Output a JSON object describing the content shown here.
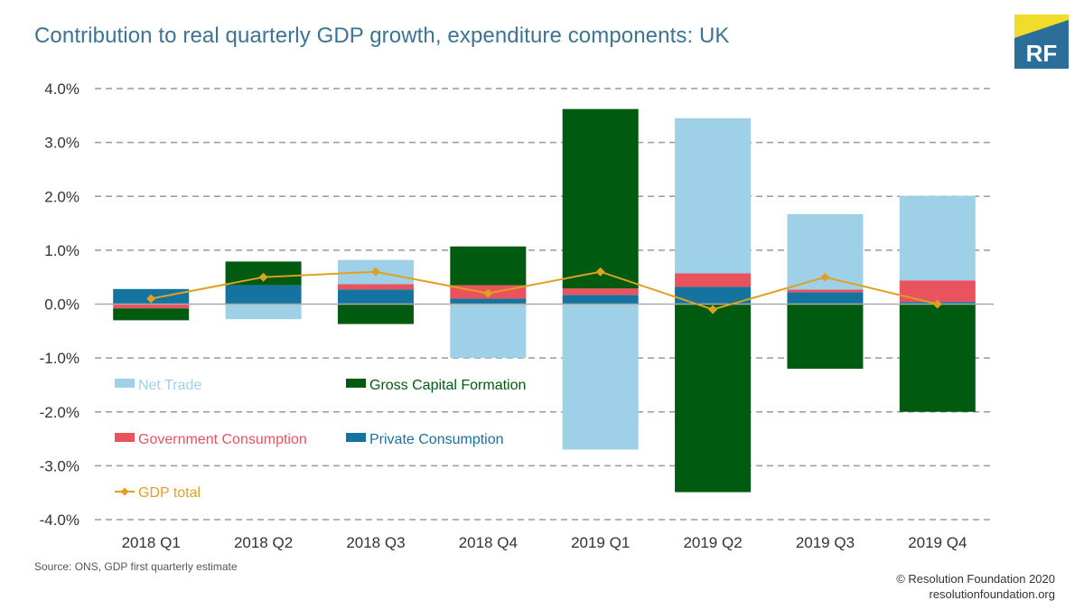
{
  "title": "Contribution to real quarterly GDP growth, expenditure components: UK",
  "logo": {
    "text": "RF",
    "colors": {
      "yellow": "#f0dc2a",
      "blue": "#2b6e99"
    }
  },
  "source": "Source: ONS, GDP first quarterly estimate",
  "copyright": {
    "line1": "© Resolution Foundation 2020",
    "line2": "resolutionfoundation.org"
  },
  "colors": {
    "net_trade": "#9ed1e8",
    "gross_capital_formation": "#005a0f",
    "government_consumption": "#e8535d",
    "private_consumption": "#1573a0",
    "gdp_total": "#e0a020",
    "grid": "#9a9a9a"
  },
  "chart_data": {
    "type": "bar",
    "stacked": true,
    "categories": [
      "2018 Q1",
      "2018 Q2",
      "2018 Q3",
      "2018 Q4",
      "2019 Q1",
      "2019 Q2",
      "2019 Q3",
      "2019 Q4"
    ],
    "series": [
      {
        "name": "Private Consumption",
        "color_key": "private_consumption",
        "values": [
          0.28,
          0.35,
          0.27,
          0.1,
          0.17,
          0.32,
          0.22,
          0.04
        ]
      },
      {
        "name": "Government Consumption",
        "color_key": "government_consumption",
        "values": [
          -0.08,
          0.0,
          0.1,
          0.25,
          0.12,
          0.25,
          0.05,
          0.4
        ]
      },
      {
        "name": "Gross Capital Formation",
        "color_key": "gross_capital_formation",
        "values": [
          -0.22,
          0.44,
          -0.37,
          0.72,
          3.33,
          -3.49,
          -1.2,
          -2.0
        ]
      },
      {
        "name": "Net Trade",
        "color_key": "net_trade",
        "values": [
          0.0,
          -0.28,
          0.45,
          -1.0,
          -2.7,
          2.88,
          1.4,
          1.57
        ]
      }
    ],
    "line_series": {
      "name": "GDP total",
      "values": [
        0.1,
        0.5,
        0.6,
        0.2,
        0.6,
        -0.1,
        0.5,
        0.0
      ]
    },
    "ylim": [
      -4.0,
      4.0
    ],
    "yticks": [
      "4.0%",
      "3.0%",
      "2.0%",
      "1.0%",
      "0.0%",
      "-1.0%",
      "-2.0%",
      "-3.0%",
      "-4.0%"
    ],
    "ytick_values": [
      4,
      3,
      2,
      1,
      0,
      -1,
      -2,
      -3,
      -4
    ],
    "grid": true,
    "legend": [
      {
        "label": "Net Trade",
        "color_key": "net_trade",
        "kind": "box"
      },
      {
        "label": "Gross Capital Formation",
        "color_key": "gross_capital_formation",
        "kind": "box"
      },
      {
        "label": "Government Consumption",
        "color_key": "government_consumption",
        "kind": "box"
      },
      {
        "label": "Private Consumption",
        "color_key": "private_consumption",
        "kind": "box"
      },
      {
        "label": "GDP total",
        "color_key": "gdp_total",
        "kind": "line"
      }
    ],
    "legend_placement": "inside-left"
  }
}
